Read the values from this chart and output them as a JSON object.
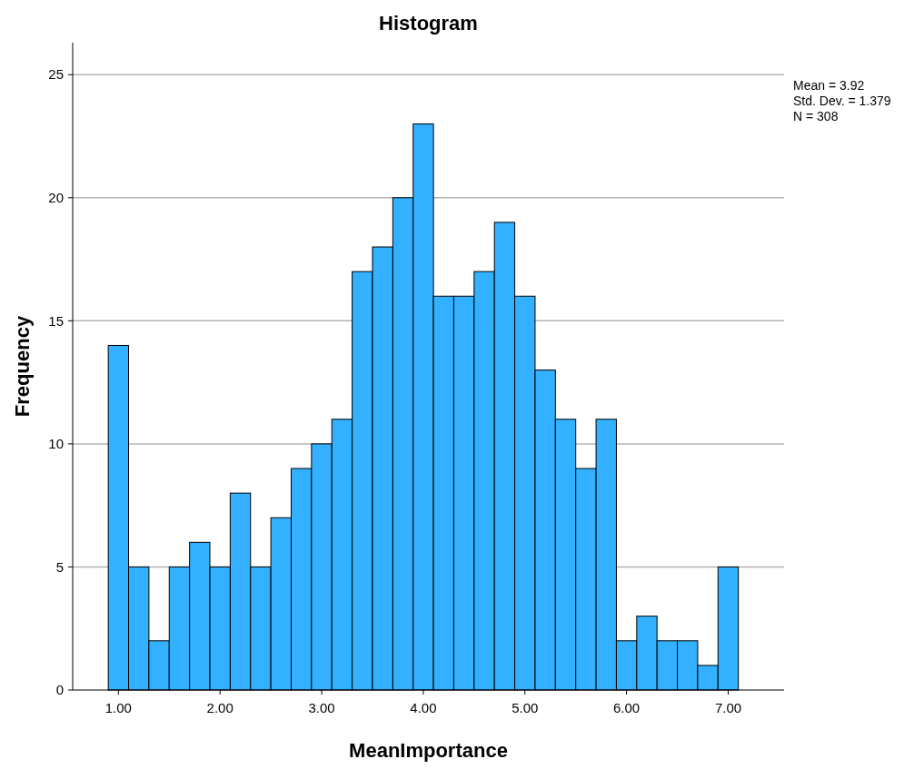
{
  "chart_data": {
    "type": "histogram",
    "title": "Histogram",
    "xlabel": "MeanImportance",
    "ylabel": "Frequency",
    "bins": [
      0.9,
      1.1,
      1.3,
      1.5,
      1.7,
      1.9,
      2.1,
      2.3,
      2.5,
      2.7,
      2.9,
      3.1,
      3.3,
      3.5,
      3.7,
      3.9,
      4.1,
      4.3,
      4.5,
      4.7,
      4.9,
      5.1,
      5.3,
      5.5,
      5.7,
      5.9,
      6.1,
      6.3,
      6.5,
      6.7,
      6.9,
      7.1
    ],
    "values": [
      14,
      5,
      2,
      5,
      6,
      5,
      8,
      5,
      7,
      9,
      10,
      11,
      17,
      18,
      20,
      23,
      16,
      16,
      17,
      19,
      16,
      13,
      11,
      9,
      11,
      2,
      3,
      2,
      2,
      1,
      5
    ],
    "color": "#33b0ff",
    "xlim": [
      0.55,
      7.55
    ],
    "ylim": [
      0,
      26.3
    ],
    "xticks": [
      {
        "value": 1,
        "label": "1.00"
      },
      {
        "value": 2,
        "label": "2.00"
      },
      {
        "value": 3,
        "label": "3.00"
      },
      {
        "value": 4,
        "label": "4.00"
      },
      {
        "value": 5,
        "label": "5.00"
      },
      {
        "value": 6,
        "label": "6.00"
      },
      {
        "value": 7,
        "label": "7.00"
      }
    ],
    "yticks": [
      0,
      5,
      10,
      15,
      20,
      25
    ],
    "grid": "y",
    "annotations": [
      "Mean = 3.92",
      "Std. Dev. = 1.379",
      "N = 308"
    ]
  }
}
